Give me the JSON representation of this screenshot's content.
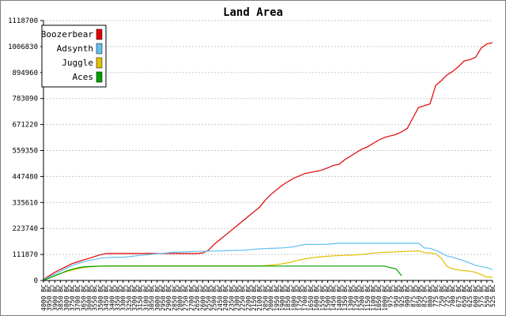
{
  "chart_data": {
    "type": "line",
    "title": "Land Area",
    "xlabel": "",
    "ylabel": "",
    "ylim": [
      0,
      1118700
    ],
    "y_ticks": [
      0,
      111870,
      223740,
      335610,
      447480,
      559350,
      671220,
      783090,
      894960,
      1006830,
      1118700
    ],
    "grid": true,
    "legend_position": "top-left",
    "x": [
      "4000 BC",
      "3950 BC",
      "3900 BC",
      "3850 BC",
      "3800 BC",
      "3750 BC",
      "3700 BC",
      "3650 BC",
      "3600 BC",
      "3550 BC",
      "3500 BC",
      "3450 BC",
      "3400 BC",
      "3350 BC",
      "3300 BC",
      "3250 BC",
      "3200 BC",
      "3150 BC",
      "3100 BC",
      "3050 BC",
      "3000 BC",
      "2950 BC",
      "2900 BC",
      "2850 BC",
      "2800 BC",
      "2750 BC",
      "2700 BC",
      "2650 BC",
      "2600 BC",
      "2550 BC",
      "2500 BC",
      "2450 BC",
      "2400 BC",
      "2350 BC",
      "2300 BC",
      "2250 BC",
      "2200 BC",
      "2150 BC",
      "2100 BC",
      "2050 BC",
      "2000 BC",
      "1950 BC",
      "1900 BC",
      "1850 BC",
      "1800 BC",
      "1750 BC",
      "1700 BC",
      "1650 BC",
      "1600 BC",
      "1550 BC",
      "1500 BC",
      "1450 BC",
      "1400 BC",
      "1350 BC",
      "1300 BC",
      "1250 BC",
      "1200 BC",
      "1150 BC",
      "1100 BC",
      "1050 BC",
      "1000 BC",
      "975 BC",
      "950 BC",
      "925 BC",
      "900 BC",
      "875 BC",
      "850 BC",
      "825 BC",
      "800 BC",
      "775 BC",
      "750 BC",
      "725 BC",
      "700 BC",
      "675 BC",
      "650 BC",
      "625 BC",
      "600 BC",
      "575 BC",
      "550 BC",
      "525 BC"
    ],
    "series": [
      {
        "name": "Boozerbear",
        "color": "#e00000",
        "values": [
          5000,
          20000,
          35000,
          48000,
          60000,
          72000,
          80000,
          88000,
          95000,
          103000,
          110000,
          116000,
          116000,
          116000,
          116000,
          116000,
          116000,
          116000,
          116000,
          116000,
          116000,
          116000,
          116000,
          116000,
          116000,
          116000,
          116000,
          116000,
          118000,
          130000,
          155000,
          175000,
          195000,
          215000,
          235000,
          255000,
          275000,
          295000,
          315000,
          345000,
          370000,
          390000,
          410000,
          425000,
          440000,
          450000,
          460000,
          465000,
          470000,
          475000,
          485000,
          495000,
          500000,
          520000,
          535000,
          550000,
          565000,
          575000,
          590000,
          605000,
          615000,
          622000,
          628000,
          640000,
          655000,
          700000,
          745000,
          752000,
          760000,
          840000,
          860000,
          885000,
          900000,
          920000,
          945000,
          950000,
          960000,
          1000000,
          1018000,
          1023000
        ]
      },
      {
        "name": "Adsynth",
        "color": "#60c0f0",
        "values": [
          4000,
          15000,
          27000,
          40000,
          52000,
          64000,
          72000,
          80000,
          86000,
          90000,
          96000,
          98000,
          99000,
          100000,
          100000,
          102000,
          105000,
          108000,
          110000,
          113000,
          115000,
          117000,
          119000,
          121000,
          122000,
          123000,
          124000,
          125000,
          125000,
          126000,
          127000,
          127000,
          128000,
          129000,
          130000,
          130000,
          132000,
          134000,
          136000,
          137000,
          138000,
          139000,
          140000,
          142000,
          145000,
          150000,
          155000,
          155000,
          155000,
          155000,
          156000,
          158000,
          160000,
          160000,
          160000,
          160000,
          160000,
          160000,
          160000,
          160000,
          160000,
          160000,
          160000,
          160000,
          160000,
          160000,
          160000,
          140000,
          138000,
          130000,
          118000,
          105000,
          100000,
          92000,
          84000,
          75000,
          65000,
          60000,
          55000,
          48000
        ]
      },
      {
        "name": "Juggle",
        "color": "#e0c000",
        "values": [
          2000,
          10000,
          20000,
          30000,
          38000,
          44000,
          50000,
          55000,
          58000,
          60000,
          62000,
          63000,
          63000,
          63000,
          63000,
          63000,
          63000,
          63000,
          63000,
          63000,
          63000,
          63000,
          63000,
          63000,
          63000,
          63000,
          63000,
          63000,
          63000,
          63000,
          63000,
          63000,
          63000,
          63000,
          63000,
          63000,
          63000,
          63000,
          63000,
          64000,
          66000,
          68000,
          72000,
          76000,
          82000,
          88000,
          93000,
          97000,
          100000,
          102000,
          104000,
          106000,
          107000,
          108000,
          109000,
          110000,
          112000,
          115000,
          118000,
          120000,
          121000,
          122000,
          123000,
          124000,
          125000,
          126000,
          127000,
          120000,
          118000,
          115000,
          95000,
          60000,
          50000,
          45000,
          42000,
          40000,
          35000,
          25000,
          15000,
          14000
        ]
      },
      {
        "name": "Aces",
        "color": "#00a000",
        "values": [
          1000,
          10000,
          20000,
          30000,
          40000,
          48000,
          54000,
          58000,
          60000,
          61000,
          62000,
          62000,
          62000,
          62000,
          62000,
          62000,
          62000,
          62000,
          62000,
          62000,
          62000,
          62000,
          62000,
          62000,
          62000,
          62000,
          62000,
          62000,
          62000,
          62000,
          62000,
          62000,
          62000,
          62000,
          62000,
          62000,
          62000,
          62000,
          62000,
          62000,
          62000,
          62000,
          62000,
          62000,
          62000,
          62000,
          62000,
          62000,
          62000,
          62000,
          62000,
          62000,
          62000,
          62000,
          62000,
          62000,
          62000,
          62000,
          62000,
          62000,
          62000,
          55000,
          50000,
          20000,
          null,
          null,
          null,
          null,
          null,
          null,
          null,
          null,
          null,
          null,
          null,
          null,
          null,
          null,
          null,
          null
        ]
      }
    ]
  },
  "colors": {
    "background": "#ffffff",
    "grid": "#c8c8c8",
    "axis": "#000000",
    "frame": "#808080"
  }
}
